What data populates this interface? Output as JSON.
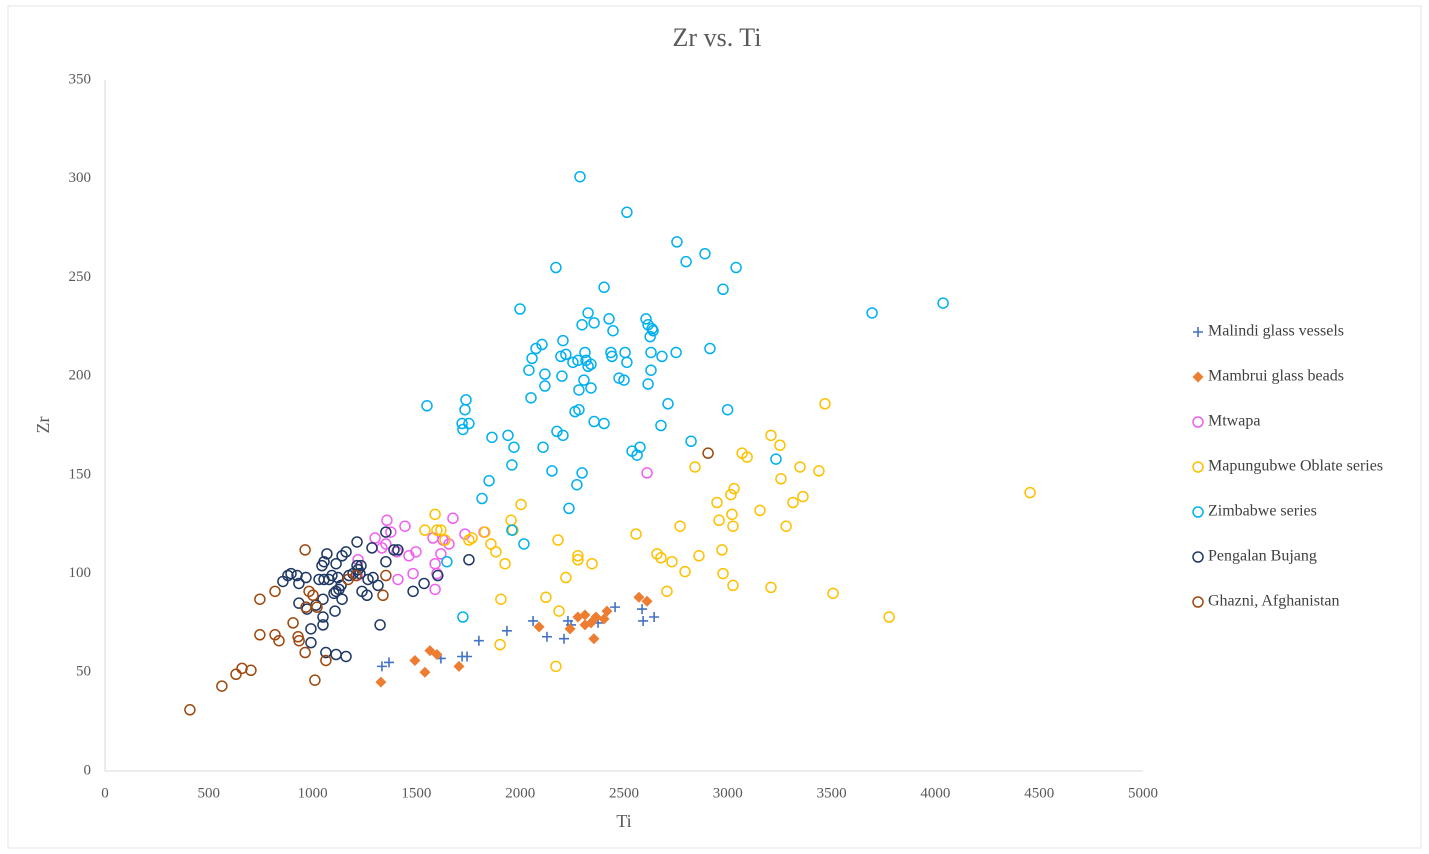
{
  "chart_data": {
    "type": "scatter",
    "title": "Zr vs. Ti",
    "x_label": "Ti",
    "y_label": "Zr",
    "xlim": [
      0,
      5000
    ],
    "xticks": [
      0,
      500,
      1000,
      1500,
      2000,
      2500,
      3000,
      3500,
      4000,
      4500,
      5000
    ],
    "ylim": [
      0,
      350
    ],
    "yticks": [
      0,
      50,
      100,
      150,
      200,
      250,
      300,
      350
    ],
    "grid": false,
    "legend": "right",
    "series": [
      {
        "name": "Malindi glass vessels",
        "color": "#4472c4",
        "marker": "plus",
        "x": [
          1334,
          1368,
          1618,
          1720,
          1744,
          1801,
          1936,
          2062,
          2129,
          2211,
          2230,
          2245,
          2375,
          2457,
          2587,
          2592,
          2645
        ],
        "values": [
          53,
          55,
          57,
          58,
          58,
          66,
          71,
          76,
          68,
          67,
          76,
          74,
          75,
          83,
          82,
          76,
          78
        ]
      },
      {
        "name": "Mambrui glass beads",
        "color": "#ed7d31",
        "marker": "diamond",
        "x": [
          1329,
          1493,
          1541,
          1565,
          1599,
          1705,
          2091,
          2240,
          2278,
          2312,
          2312,
          2341,
          2355,
          2365,
          2404,
          2418,
          2572,
          2611
        ],
        "values": [
          45,
          56,
          50,
          61,
          59,
          53,
          73,
          72,
          78,
          79,
          74,
          75,
          67,
          78,
          77,
          81,
          88,
          86
        ]
      },
      {
        "name": "Mtwapa",
        "color": "#f060f0",
        "marker": "circle",
        "x": [
          1214,
          1219,
          1301,
          1334,
          1353,
          1358,
          1377,
          1406,
          1411,
          1445,
          1464,
          1484,
          1498,
          1580,
          1590,
          1590,
          1599,
          1618,
          1628,
          1657,
          1676,
          1734,
          1826,
          2611
        ],
        "values": [
          99,
          107,
          118,
          113,
          115,
          127,
          121,
          111,
          97,
          124,
          109,
          100,
          111,
          118,
          105,
          92,
          100,
          110,
          117,
          115,
          128,
          120,
          121,
          151
        ]
      },
      {
        "name": "Mapungubwe Oblate series",
        "color": "#ffc000",
        "marker": "circle",
        "x": [
          1590,
          1541,
          1599,
          1618,
          1638,
          1753,
          1768,
          1830,
          1859,
          1883,
          1927,
          1956,
          1965,
          2004,
          1907,
          1903,
          2124,
          2182,
          2187,
          2172,
          2220,
          2278,
          2278,
          2346,
          2558,
          2659,
          2678,
          2707,
          2731,
          2770,
          2794,
          2842,
          2861,
          2948,
          2958,
          2972,
          2977,
          3015,
          3020,
          3025,
          3025,
          3030,
          3069,
          3093,
          3155,
          3208,
          3208,
          3251,
          3256,
          3281,
          3314,
          3348,
          3362,
          3439,
          3468,
          3507,
          3777,
          4456
        ],
        "values": [
          130,
          122,
          122,
          122,
          117,
          117,
          118,
          121,
          115,
          111,
          105,
          127,
          122,
          135,
          87,
          64,
          88,
          117,
          81,
          53,
          98,
          109,
          107,
          105,
          120,
          110,
          108,
          91,
          106,
          124,
          101,
          154,
          109,
          136,
          127,
          112,
          100,
          140,
          130,
          124,
          94,
          143,
          161,
          159,
          132,
          170,
          93,
          165,
          148,
          124,
          136,
          154,
          139,
          152,
          186,
          90,
          78,
          141
        ]
      },
      {
        "name": "Zimbabwe series",
        "color": "#00b0f0",
        "marker": "circle",
        "x": [
          2288,
          2514,
          2755,
          2890,
          2799,
          3040,
          2172,
          2977,
          2404,
          1999,
          2327,
          2428,
          2606,
          2298,
          2356,
          2616,
          2635,
          2640,
          2447,
          2626,
          2206,
          2105,
          2076,
          2312,
          2437,
          2505,
          2751,
          2630,
          2914,
          2220,
          2057,
          2196,
          2278,
          2317,
          2442,
          2683,
          2254,
          2341,
          2514,
          2327,
          2042,
          2630,
          2119,
          2201,
          2307,
          2476,
          2500,
          2616,
          2119,
          2341,
          2283,
          2052,
          2712,
          1551,
          1739,
          1734,
          2999,
          2283,
          2264,
          1720,
          1753,
          2356,
          2404,
          2678,
          1724,
          2177,
          2206,
          1941,
          1864,
          2823,
          1970,
          2110,
          2577,
          2539,
          2563,
          3232,
          1960,
          2153,
          2298,
          1850,
          2273,
          1816,
          2235,
          1960,
          2018,
          1647,
          1724,
          3695,
          4037
        ],
        "values": [
          301,
          283,
          268,
          262,
          258,
          255,
          255,
          244,
          245,
          234,
          232,
          229,
          229,
          226,
          227,
          226,
          224,
          223,
          223,
          220,
          218,
          216,
          214,
          212,
          212,
          212,
          212,
          212,
          214,
          211,
          209,
          210,
          208,
          208,
          210,
          210,
          207,
          206,
          207,
          205,
          203,
          203,
          201,
          200,
          198,
          199,
          198,
          196,
          195,
          194,
          193,
          189,
          186,
          185,
          188,
          183,
          183,
          183,
          182,
          176,
          176,
          177,
          176,
          175,
          173,
          172,
          170,
          170,
          169,
          167,
          164,
          164,
          164,
          162,
          160,
          158,
          155,
          152,
          151,
          147,
          145,
          138,
          133,
          122,
          115,
          106,
          78,
          232,
          237
        ]
      },
      {
        "name": "Pengalan Bujang",
        "color": "#1f3864",
        "marker": "circle",
        "x": [
          857,
          881,
          896,
          925,
          934,
          968,
          934,
          973,
          1016,
          992,
          992,
          1050,
          1050,
          1050,
          1031,
          1055,
          1045,
          1055,
          1069,
          1079,
          1103,
          1108,
          1093,
          1113,
          1113,
          1127,
          1137,
          1142,
          1142,
          1161,
          1122,
          1175,
          1195,
          1214,
          1214,
          1219,
          1228,
          1233,
          1238,
          1262,
          1267,
          1291,
          1286,
          1315,
          1325,
          1353,
          1353,
          1392,
          1411,
          1484,
          1537,
          1603,
          1753,
          1064,
          1113,
          1161
        ],
        "values": [
          96,
          99,
          100,
          99,
          95,
          98,
          85,
          82,
          84,
          72,
          65,
          87,
          78,
          74,
          97,
          97,
          104,
          106,
          110,
          97,
          90,
          81,
          99,
          105,
          91,
          92,
          94,
          87,
          109,
          111,
          98,
          99,
          100,
          116,
          104,
          102,
          100,
          104,
          91,
          89,
          97,
          98,
          113,
          94,
          74,
          106,
          121,
          112,
          112,
          91,
          95,
          99,
          107,
          60,
          59,
          58
        ]
      },
      {
        "name": "Ghazni, Afghanistan",
        "color": "#9e480e",
        "marker": "circle",
        "x": [
          409,
          563,
          631,
          660,
          703,
          746,
          746,
          819,
          819,
          838,
          906,
          930,
          935,
          964,
          968,
          964,
          983,
          1002,
          1021,
          1011,
          1064,
          1171,
          1209,
          1339,
          1353,
          2905
        ],
        "values": [
          31,
          43,
          49,
          52,
          51,
          69,
          87,
          91,
          69,
          66,
          75,
          68,
          66,
          112,
          83,
          60,
          91,
          89,
          83,
          46,
          56,
          97,
          99,
          89,
          99,
          161
        ]
      }
    ]
  }
}
